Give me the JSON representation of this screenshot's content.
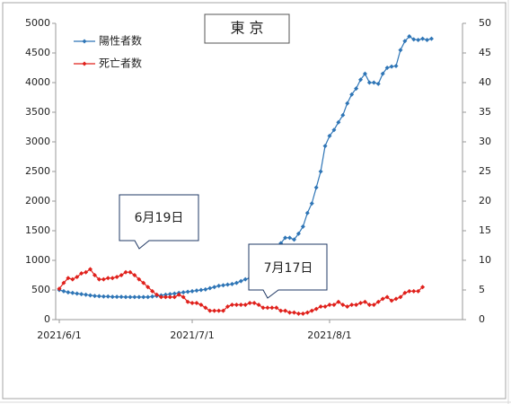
{
  "chart_data": {
    "type": "line",
    "title": "東 京",
    "x": [
      "2021/6/1",
      "2021/6/2",
      "2021/6/3",
      "2021/6/4",
      "2021/6/5",
      "2021/6/6",
      "2021/6/7",
      "2021/6/8",
      "2021/6/9",
      "2021/6/10",
      "2021/6/11",
      "2021/6/12",
      "2021/6/13",
      "2021/6/14",
      "2021/6/15",
      "2021/6/16",
      "2021/6/17",
      "2021/6/18",
      "2021/6/19",
      "2021/6/20",
      "2021/6/21",
      "2021/6/22",
      "2021/6/23",
      "2021/6/24",
      "2021/6/25",
      "2021/6/26",
      "2021/6/27",
      "2021/6/28",
      "2021/6/29",
      "2021/6/30",
      "2021/7/1",
      "2021/7/2",
      "2021/7/3",
      "2021/7/4",
      "2021/7/5",
      "2021/7/6",
      "2021/7/7",
      "2021/7/8",
      "2021/7/9",
      "2021/7/10",
      "2021/7/11",
      "2021/7/12",
      "2021/7/13",
      "2021/7/14",
      "2021/7/15",
      "2021/7/16",
      "2021/7/17",
      "2021/7/18",
      "2021/7/19",
      "2021/7/20",
      "2021/7/21",
      "2021/7/22",
      "2021/7/23",
      "2021/7/24",
      "2021/7/25",
      "2021/7/26",
      "2021/7/27",
      "2021/7/28",
      "2021/7/29",
      "2021/7/30",
      "2021/7/31",
      "2021/8/1",
      "2021/8/2",
      "2021/8/3",
      "2021/8/4",
      "2021/8/5",
      "2021/8/6",
      "2021/8/7",
      "2021/8/8",
      "2021/8/9",
      "2021/8/10",
      "2021/8/11",
      "2021/8/12",
      "2021/8/13",
      "2021/8/14",
      "2021/8/15",
      "2021/8/16",
      "2021/8/17",
      "2021/8/18",
      "2021/8/19",
      "2021/8/20",
      "2021/8/21",
      "2021/8/22",
      "2021/8/23",
      "2021/8/24"
    ],
    "series": [
      {
        "name": "陽性者数",
        "color": "#2e75b6",
        "values": [
          500,
          480,
          460,
          450,
          440,
          430,
          420,
          410,
          400,
          395,
          390,
          390,
          385,
          385,
          385,
          380,
          380,
          380,
          380,
          380,
          380,
          390,
          400,
          410,
          420,
          430,
          440,
          450,
          460,
          470,
          480,
          490,
          500,
          510,
          530,
          550,
          570,
          580,
          590,
          600,
          620,
          650,
          680,
          700,
          720,
          740,
          760,
          800,
          900,
          1000,
          1290,
          1380,
          1380,
          1350,
          1450,
          1570,
          1800,
          1960,
          2230,
          2500,
          2930,
          3100,
          3200,
          3330,
          3450,
          3650,
          3800,
          3900,
          4050,
          4150,
          4000,
          4000,
          3980,
          4150,
          4250,
          4270,
          4280,
          4550,
          4700,
          4780,
          4730,
          4720,
          4740,
          4720,
          4740
        ]
      },
      {
        "name": "死亡者数",
        "color": "#e0201b",
        "axis": "y2",
        "values": [
          5.2,
          6.2,
          7.0,
          6.8,
          7.2,
          7.8,
          8.0,
          8.5,
          7.5,
          6.8,
          6.8,
          7.0,
          7.0,
          7.2,
          7.5,
          8.0,
          8.0,
          7.5,
          6.8,
          6.2,
          5.5,
          4.8,
          4.2,
          3.8,
          3.8,
          3.8,
          3.8,
          4.2,
          3.8,
          3.0,
          2.8,
          2.8,
          2.5,
          2.0,
          1.5,
          1.5,
          1.5,
          1.5,
          2.2,
          2.5,
          2.5,
          2.5,
          2.5,
          2.8,
          2.8,
          2.5,
          2.0,
          2.0,
          2.0,
          2.0,
          1.5,
          1.5,
          1.2,
          1.2,
          1.0,
          1.0,
          1.2,
          1.5,
          1.8,
          2.2,
          2.2,
          2.5,
          2.5,
          3.0,
          2.5,
          2.2,
          2.5,
          2.5,
          2.8,
          3.0,
          2.5,
          2.5,
          3.0,
          3.5,
          3.8,
          3.2,
          3.5,
          3.8,
          4.5,
          4.8,
          4.8,
          4.8,
          5.5,
          null,
          null
        ]
      }
    ],
    "xlim": [
      "2021/6/1",
      "2021/8/31"
    ],
    "xticks": [
      "2021/6/1",
      "2021/7/1",
      "2021/8/1"
    ],
    "ylim": [
      0,
      5000
    ],
    "yticks": [
      0,
      500,
      1000,
      1500,
      2000,
      2500,
      3000,
      3500,
      4000,
      4500,
      5000
    ],
    "y2lim": [
      0,
      50
    ],
    "y2ticks": [
      0,
      5,
      10,
      15,
      20,
      25,
      30,
      35,
      40,
      45,
      50
    ],
    "grid": false,
    "legend": "upper left",
    "annotations": [
      {
        "text": "6月19日"
      },
      {
        "text": "7月17日"
      }
    ]
  }
}
